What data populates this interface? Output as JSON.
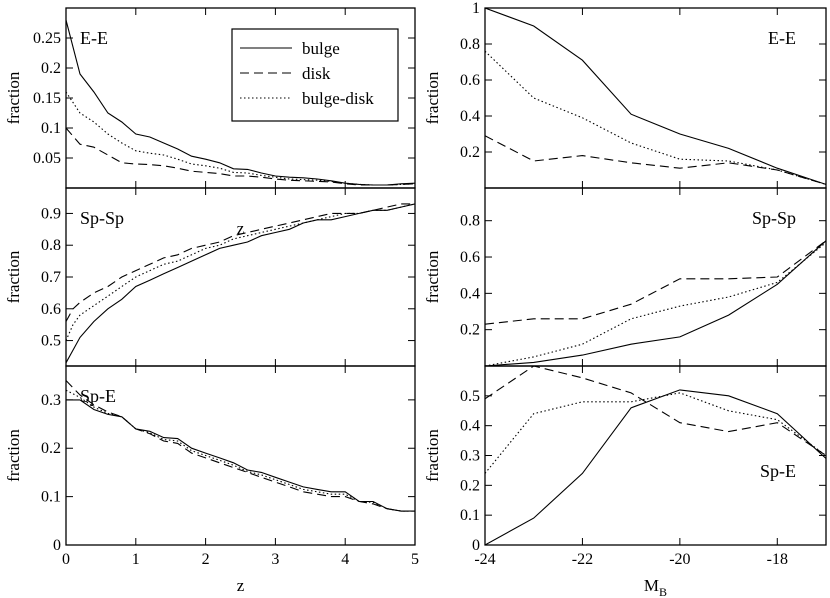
{
  "chart_data": [
    {
      "type": "line",
      "panel": "left-top",
      "title": "E-E",
      "xlabel": "z",
      "ylabel": "fraction",
      "xlim": [
        0,
        5
      ],
      "ylim": [
        0,
        0.3
      ],
      "xticks": [
        0,
        1,
        2,
        3,
        4,
        5
      ],
      "xtick_labels": [
        "0",
        "1",
        "2",
        "3",
        "4",
        "5"
      ],
      "yticks": [
        0.05,
        0.1,
        0.15,
        0.2,
        0.25
      ],
      "ytick_labels": [
        "0.05",
        "0.1",
        "0.15",
        "0.2",
        "0.25"
      ],
      "show_xtick_labels": false,
      "title_position": "top-left",
      "legend_position": "top-right",
      "series": [
        {
          "name": "bulge",
          "style": "solid",
          "x": [
            0,
            0.2,
            0.4,
            0.6,
            0.8,
            1,
            1.2,
            1.4,
            1.6,
            1.8,
            2,
            2.2,
            2.4,
            2.6,
            2.8,
            3,
            3.2,
            3.4,
            3.6,
            3.8,
            4,
            4.2,
            4.4,
            4.6,
            4.8,
            5
          ],
          "values": [
            0.28,
            0.19,
            0.16,
            0.125,
            0.11,
            0.09,
            0.085,
            0.075,
            0.065,
            0.053,
            0.048,
            0.042,
            0.032,
            0.031,
            0.025,
            0.02,
            0.018,
            0.017,
            0.015,
            0.012,
            0.008,
            0.006,
            0.005,
            0.005,
            0.007,
            0.008
          ]
        },
        {
          "name": "disk",
          "style": "dashed",
          "x": [
            0,
            0.2,
            0.4,
            0.6,
            0.8,
            1,
            1.2,
            1.4,
            1.6,
            1.8,
            2,
            2.2,
            2.4,
            2.6,
            2.8,
            3,
            3.2,
            3.4,
            3.6,
            3.8,
            4,
            4.2,
            4.4,
            4.6,
            4.8,
            5
          ],
          "values": [
            0.1,
            0.073,
            0.068,
            0.055,
            0.042,
            0.04,
            0.039,
            0.037,
            0.033,
            0.028,
            0.026,
            0.024,
            0.02,
            0.02,
            0.018,
            0.015,
            0.013,
            0.012,
            0.011,
            0.01,
            0.007,
            0.005,
            0.005,
            0.005,
            0.006,
            0.007
          ]
        },
        {
          "name": "bulge-disk",
          "style": "dotted",
          "x": [
            0,
            0.2,
            0.4,
            0.6,
            0.8,
            1,
            1.2,
            1.4,
            1.6,
            1.8,
            2,
            2.2,
            2.4,
            2.6,
            2.8,
            3,
            3.2,
            3.4,
            3.6,
            3.8,
            4,
            4.2,
            4.4,
            4.6,
            4.8,
            5
          ],
          "values": [
            0.16,
            0.125,
            0.11,
            0.09,
            0.075,
            0.062,
            0.058,
            0.055,
            0.048,
            0.04,
            0.037,
            0.033,
            0.026,
            0.025,
            0.021,
            0.018,
            0.015,
            0.014,
            0.013,
            0.011,
            0.008,
            0.006,
            0.005,
            0.005,
            0.006,
            0.007
          ]
        }
      ]
    },
    {
      "type": "line",
      "panel": "left-middle",
      "title": "Sp-Sp",
      "xlabel": "",
      "ylabel": "fraction",
      "xlim": [
        0,
        5
      ],
      "ylim": [
        0.42,
        0.98
      ],
      "xticks": [
        0,
        1,
        2,
        3,
        4,
        5
      ],
      "xtick_labels": [
        "0",
        "1",
        "2",
        "3",
        "4",
        "5"
      ],
      "yticks": [
        0.5,
        0.6,
        0.7,
        0.8,
        0.9
      ],
      "ytick_labels": [
        "0.5",
        "0.6",
        "0.7",
        "0.8",
        "0.9"
      ],
      "show_xtick_labels": false,
      "title_position": "top-left",
      "series": [
        {
          "name": "bulge",
          "style": "solid",
          "x": [
            0,
            0.1,
            0.2,
            0.4,
            0.6,
            0.8,
            1,
            1.2,
            1.4,
            1.6,
            1.8,
            2,
            2.2,
            2.4,
            2.6,
            2.8,
            3,
            3.2,
            3.4,
            3.6,
            3.8,
            4,
            4.2,
            4.4,
            4.6,
            4.8,
            5
          ],
          "values": [
            0.43,
            0.47,
            0.51,
            0.56,
            0.6,
            0.63,
            0.67,
            0.69,
            0.71,
            0.73,
            0.75,
            0.77,
            0.79,
            0.8,
            0.81,
            0.83,
            0.84,
            0.85,
            0.87,
            0.88,
            0.88,
            0.89,
            0.9,
            0.91,
            0.91,
            0.92,
            0.93
          ]
        },
        {
          "name": "disk",
          "style": "dashed",
          "x": [
            0,
            0.1,
            0.2,
            0.4,
            0.6,
            0.8,
            1,
            1.2,
            1.4,
            1.6,
            1.8,
            2,
            2.2,
            2.4,
            2.6,
            2.8,
            3,
            3.2,
            3.4,
            3.6,
            3.8,
            4,
            4.2,
            4.4,
            4.6,
            4.8,
            5
          ],
          "values": [
            0.56,
            0.6,
            0.62,
            0.65,
            0.67,
            0.7,
            0.72,
            0.74,
            0.76,
            0.77,
            0.79,
            0.8,
            0.81,
            0.83,
            0.84,
            0.85,
            0.86,
            0.87,
            0.88,
            0.89,
            0.9,
            0.9,
            0.9,
            0.91,
            0.92,
            0.93,
            0.93
          ]
        },
        {
          "name": "bulge-disk",
          "style": "dotted",
          "x": [
            0,
            0.1,
            0.2,
            0.4,
            0.6,
            0.8,
            1,
            1.2,
            1.4,
            1.6,
            1.8,
            2,
            2.2,
            2.4,
            2.6,
            2.8,
            3,
            3.2,
            3.4,
            3.6,
            3.8,
            4,
            4.2,
            4.4,
            4.6,
            4.8,
            5
          ],
          "values": [
            0.5,
            0.55,
            0.58,
            0.61,
            0.64,
            0.67,
            0.7,
            0.72,
            0.74,
            0.75,
            0.77,
            0.79,
            0.8,
            0.82,
            0.83,
            0.84,
            0.85,
            0.86,
            0.87,
            0.88,
            0.89,
            0.9,
            0.9,
            0.91,
            0.91,
            0.92,
            0.93
          ]
        }
      ]
    },
    {
      "type": "line",
      "panel": "left-bottom",
      "title": "Sp-E",
      "xlabel": "z",
      "ylabel": "fraction",
      "xlim": [
        0,
        5
      ],
      "ylim": [
        0,
        0.37
      ],
      "xticks": [
        0,
        1,
        2,
        3,
        4,
        5
      ],
      "xtick_labels": [
        "0",
        "1",
        "2",
        "3",
        "4",
        "5"
      ],
      "yticks": [
        0,
        0.1,
        0.2,
        0.3
      ],
      "ytick_labels": [
        "0",
        "0.1",
        "0.2",
        "0.3"
      ],
      "show_xtick_labels": true,
      "title_position": "top-left",
      "series": [
        {
          "name": "bulge",
          "style": "solid",
          "x": [
            0,
            0.2,
            0.4,
            0.6,
            0.8,
            1,
            1.2,
            1.4,
            1.6,
            1.8,
            2,
            2.2,
            2.4,
            2.6,
            2.8,
            3,
            3.2,
            3.4,
            3.6,
            3.8,
            4,
            4.2,
            4.4,
            4.6,
            4.8,
            5
          ],
          "values": [
            0.3,
            0.3,
            0.28,
            0.27,
            0.265,
            0.24,
            0.235,
            0.222,
            0.22,
            0.2,
            0.19,
            0.18,
            0.17,
            0.155,
            0.15,
            0.14,
            0.13,
            0.12,
            0.115,
            0.11,
            0.11,
            0.09,
            0.09,
            0.075,
            0.07,
            0.07
          ]
        },
        {
          "name": "disk",
          "style": "dashed",
          "x": [
            0,
            0.2,
            0.4,
            0.6,
            0.8,
            1,
            1.2,
            1.4,
            1.6,
            1.8,
            2,
            2.2,
            2.4,
            2.6,
            2.8,
            3,
            3.2,
            3.4,
            3.6,
            3.8,
            4,
            4.2,
            4.4,
            4.6,
            4.8,
            5
          ],
          "values": [
            0.34,
            0.31,
            0.29,
            0.275,
            0.265,
            0.24,
            0.23,
            0.215,
            0.21,
            0.19,
            0.18,
            0.17,
            0.16,
            0.15,
            0.14,
            0.13,
            0.12,
            0.11,
            0.105,
            0.1,
            0.1,
            0.09,
            0.085,
            0.075,
            0.07,
            0.07
          ]
        },
        {
          "name": "bulge-disk",
          "style": "dotted",
          "x": [
            0,
            0.2,
            0.4,
            0.6,
            0.8,
            1,
            1.2,
            1.4,
            1.6,
            1.8,
            2,
            2.2,
            2.4,
            2.6,
            2.8,
            3,
            3.2,
            3.4,
            3.6,
            3.8,
            4,
            4.2,
            4.4,
            4.6,
            4.8,
            5
          ],
          "values": [
            0.32,
            0.305,
            0.285,
            0.272,
            0.265,
            0.24,
            0.232,
            0.218,
            0.215,
            0.195,
            0.185,
            0.175,
            0.165,
            0.152,
            0.145,
            0.135,
            0.125,
            0.115,
            0.11,
            0.105,
            0.105,
            0.09,
            0.088,
            0.075,
            0.07,
            0.07
          ]
        }
      ]
    },
    {
      "type": "line",
      "panel": "right-top",
      "title": "E-E",
      "xlabel": "",
      "ylabel": "fraction",
      "xlim": [
        -24,
        -17
      ],
      "ylim": [
        0,
        1
      ],
      "xticks": [
        -24,
        -22,
        -20,
        -18
      ],
      "xtick_labels": [
        "-24",
        "-22",
        "-20",
        "-18"
      ],
      "yticks": [
        0.2,
        0.4,
        0.6,
        0.8,
        1
      ],
      "ytick_labels": [
        "0.2",
        "0.4",
        "0.6",
        "0.8",
        "1"
      ],
      "show_xtick_labels": false,
      "title_position": "top-right",
      "series": [
        {
          "name": "bulge",
          "style": "solid",
          "x": [
            -24,
            -23,
            -22,
            -21,
            -20,
            -19,
            -18,
            -17
          ],
          "values": [
            1,
            0.9,
            0.71,
            0.41,
            0.3,
            0.22,
            0.11,
            0.02
          ]
        },
        {
          "name": "disk",
          "style": "dashed",
          "x": [
            -24,
            -23,
            -22,
            -21,
            -20,
            -19,
            -18,
            -17
          ],
          "values": [
            0.29,
            0.15,
            0.18,
            0.14,
            0.11,
            0.14,
            0.1,
            0.02
          ]
        },
        {
          "name": "bulge-disk",
          "style": "dotted",
          "x": [
            -24,
            -23,
            -22,
            -21,
            -20,
            -19,
            -18,
            -17
          ],
          "values": [
            0.76,
            0.5,
            0.39,
            0.25,
            0.16,
            0.15,
            0.1,
            0.02
          ]
        }
      ]
    },
    {
      "type": "line",
      "panel": "right-middle",
      "title": "Sp-Sp",
      "xlabel": "",
      "ylabel": "fraction",
      "xlim": [
        -24,
        -17
      ],
      "ylim": [
        0,
        0.98
      ],
      "xticks": [
        -24,
        -22,
        -20,
        -18
      ],
      "xtick_labels": [
        "-24",
        "-22",
        "-20",
        "-18"
      ],
      "yticks": [
        0.2,
        0.4,
        0.6,
        0.8
      ],
      "ytick_labels": [
        "0.2",
        "0.4",
        "0.6",
        "0.8"
      ],
      "show_xtick_labels": false,
      "title_position": "top-right",
      "series": [
        {
          "name": "bulge",
          "style": "solid",
          "x": [
            -24,
            -23,
            -22,
            -21,
            -20,
            -19,
            -18,
            -17
          ],
          "values": [
            0,
            0.02,
            0.06,
            0.12,
            0.16,
            0.28,
            0.45,
            0.69
          ]
        },
        {
          "name": "disk",
          "style": "dashed",
          "x": [
            -24,
            -23,
            -22,
            -21,
            -20,
            -19,
            -18,
            -17
          ],
          "values": [
            0.23,
            0.26,
            0.26,
            0.34,
            0.48,
            0.48,
            0.49,
            0.69
          ]
        },
        {
          "name": "bulge-disk",
          "style": "dotted",
          "x": [
            -24,
            -23,
            -22,
            -21,
            -20,
            -19,
            -18,
            -17
          ],
          "values": [
            0,
            0.05,
            0.12,
            0.26,
            0.33,
            0.38,
            0.46,
            0.68
          ]
        }
      ]
    },
    {
      "type": "line",
      "panel": "right-bottom",
      "title": "Sp-E",
      "xlabel": "M",
      "xlabel_subscript": "B",
      "ylabel": "fraction",
      "xlim": [
        -24,
        -17
      ],
      "ylim": [
        0,
        0.6
      ],
      "xticks": [
        -24,
        -22,
        -20,
        -18
      ],
      "xtick_labels": [
        "-24",
        "-22",
        "-20",
        "-18"
      ],
      "yticks": [
        0,
        0.1,
        0.2,
        0.3,
        0.4,
        0.5
      ],
      "ytick_labels": [
        "0",
        "0.1",
        "0.2",
        "0.3",
        "0.4",
        "0.5"
      ],
      "show_xtick_labels": true,
      "title_position": "bottom-right",
      "series": [
        {
          "name": "bulge",
          "style": "solid",
          "x": [
            -24,
            -23,
            -22,
            -21,
            -20,
            -19,
            -18,
            -17
          ],
          "values": [
            0,
            0.09,
            0.24,
            0.46,
            0.52,
            0.5,
            0.44,
            0.29
          ]
        },
        {
          "name": "disk",
          "style": "dashed",
          "x": [
            -24,
            -23,
            -22,
            -21,
            -20,
            -19,
            -18,
            -17
          ],
          "values": [
            0.49,
            0.6,
            0.56,
            0.51,
            0.41,
            0.38,
            0.41,
            0.3
          ]
        },
        {
          "name": "bulge-disk",
          "style": "dotted",
          "x": [
            -24,
            -23,
            -22,
            -21,
            -20,
            -19,
            -18,
            -17
          ],
          "values": [
            0.24,
            0.44,
            0.48,
            0.48,
            0.51,
            0.45,
            0.42,
            0.3
          ]
        }
      ]
    }
  ],
  "legend": {
    "entries": [
      {
        "label": "bulge",
        "style": "solid"
      },
      {
        "label": "disk",
        "style": "dashed"
      },
      {
        "label": "bulge-disk",
        "style": "dotted"
      }
    ]
  }
}
